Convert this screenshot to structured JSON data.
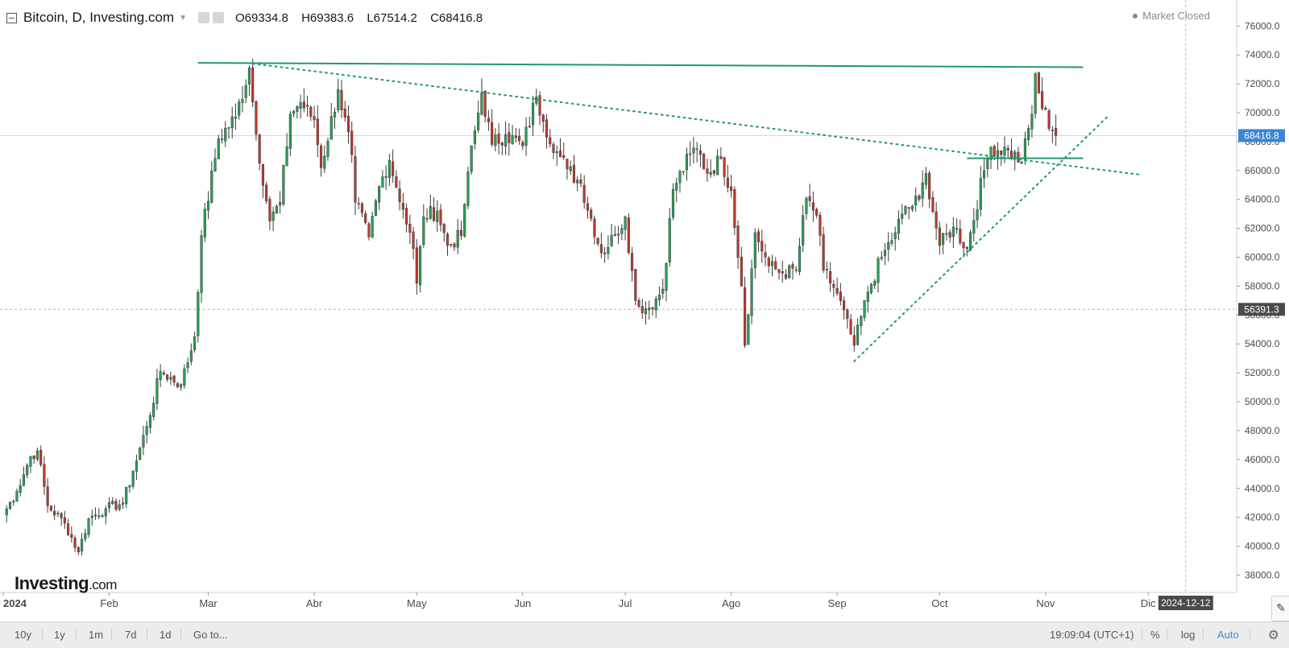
{
  "header": {
    "title": "Bitcoin, D, Investing.com",
    "ohlc": [
      {
        "key": "O",
        "value": "69334.8"
      },
      {
        "key": "H",
        "value": "69383.6"
      },
      {
        "key": "L",
        "value": "67514.2"
      },
      {
        "key": "C",
        "value": "68416.8"
      }
    ]
  },
  "market_status": "Market Closed",
  "logo": {
    "main": "Investing",
    "suffix": ".com"
  },
  "toolbar": {
    "ranges": [
      "10y",
      "1y",
      "1m",
      "7d",
      "1d"
    ],
    "goto_label": "Go to...",
    "clock": "19:09:04 (UTC+1)",
    "percent_label": "%",
    "log_label": "log",
    "auto_label": "Auto"
  },
  "colors": {
    "up": "#26a05a",
    "down": "#c0392b",
    "trend": "#1f9a6e",
    "grid": "#e3e3e3"
  },
  "chart_data": {
    "type": "candlestick",
    "title": "Bitcoin, D, Investing.com",
    "x_start": "2024-01-01",
    "x_end": "2024-12-21",
    "x_ticks": [
      {
        "date": "2024-01-01",
        "label": "2024"
      },
      {
        "date": "2024-02-01",
        "label": "Feb"
      },
      {
        "date": "2024-03-01",
        "label": "Mar"
      },
      {
        "date": "2024-04-01",
        "label": "Abr"
      },
      {
        "date": "2024-05-01",
        "label": "May"
      },
      {
        "date": "2024-06-01",
        "label": "Jun"
      },
      {
        "date": "2024-07-01",
        "label": "Jul"
      },
      {
        "date": "2024-08-01",
        "label": "Ago"
      },
      {
        "date": "2024-09-01",
        "label": "Sep"
      },
      {
        "date": "2024-10-01",
        "label": "Oct"
      },
      {
        "date": "2024-11-01",
        "label": "Nov"
      },
      {
        "date": "2024-12-01",
        "label": "Dic"
      }
    ],
    "y_ticks": [
      38000,
      40000,
      42000,
      44000,
      46000,
      48000,
      50000,
      52000,
      54000,
      56000,
      58000,
      60000,
      62000,
      64000,
      66000,
      68000,
      70000,
      72000,
      74000,
      76000
    ],
    "ylim": [
      36800,
      77800
    ],
    "last_price": {
      "value": 68416.8,
      "label": "68416.8"
    },
    "crosshair_price": {
      "value": 56391.3,
      "label": "56391.3"
    },
    "crosshair_date": {
      "date": "2024-12-12",
      "label": "2024-12-12"
    },
    "trendlines": [
      {
        "style": "solid",
        "from": {
          "date": "2024-02-27",
          "price": 73450
        },
        "to": {
          "date": "2024-11-12",
          "price": 73150
        }
      },
      {
        "style": "dotted",
        "from": {
          "date": "2024-03-14",
          "price": 73400
        },
        "to": {
          "date": "2024-11-29",
          "price": 65700
        }
      },
      {
        "style": "dotted",
        "from": {
          "date": "2024-09-06",
          "price": 52800
        },
        "to": {
          "date": "2024-11-19",
          "price": 69700
        }
      },
      {
        "style": "solid",
        "from": {
          "date": "2024-10-09",
          "price": 66850
        },
        "to": {
          "date": "2024-11-12",
          "price": 66850
        }
      }
    ],
    "anchors": [
      [
        "2024-01-01",
        42200
      ],
      [
        "2024-01-05",
        43800
      ],
      [
        "2024-01-09",
        46200
      ],
      [
        "2024-01-11",
        46600
      ],
      [
        "2024-01-14",
        42800
      ],
      [
        "2024-01-19",
        41600
      ],
      [
        "2024-01-23",
        39600
      ],
      [
        "2024-01-26",
        41900
      ],
      [
        "2024-01-31",
        42600
      ],
      [
        "2024-02-05",
        43000
      ],
      [
        "2024-02-08",
        45200
      ],
      [
        "2024-02-12",
        48300
      ],
      [
        "2024-02-16",
        52100
      ],
      [
        "2024-02-22",
        51200
      ],
      [
        "2024-02-26",
        54500
      ],
      [
        "2024-02-28",
        61500
      ],
      [
        "2024-03-04",
        68200
      ],
      [
        "2024-03-09",
        69700
      ],
      [
        "2024-03-13",
        73100
      ],
      [
        "2024-03-15",
        68500
      ],
      [
        "2024-03-19",
        62500
      ],
      [
        "2024-03-22",
        63800
      ],
      [
        "2024-03-25",
        69900
      ],
      [
        "2024-03-28",
        70700
      ],
      [
        "2024-04-01",
        69500
      ],
      [
        "2024-04-03",
        66200
      ],
      [
        "2024-04-08",
        71600
      ],
      [
        "2024-04-12",
        67100
      ],
      [
        "2024-04-13",
        63800
      ],
      [
        "2024-04-17",
        61400
      ],
      [
        "2024-04-20",
        64900
      ],
      [
        "2024-04-23",
        66700
      ],
      [
        "2024-04-27",
        63300
      ],
      [
        "2024-04-30",
        60600
      ],
      [
        "2024-05-01",
        58200
      ],
      [
        "2024-05-03",
        62800
      ],
      [
        "2024-05-07",
        63200
      ],
      [
        "2024-05-10",
        60800
      ],
      [
        "2024-05-14",
        61500
      ],
      [
        "2024-05-16",
        65900
      ],
      [
        "2024-05-20",
        71400
      ],
      [
        "2024-05-23",
        67800
      ],
      [
        "2024-05-27",
        68500
      ],
      [
        "2024-06-01",
        67700
      ],
      [
        "2024-06-05",
        71100
      ],
      [
        "2024-06-07",
        69400
      ],
      [
        "2024-06-11",
        67300
      ],
      [
        "2024-06-14",
        66100
      ],
      [
        "2024-06-18",
        65100
      ],
      [
        "2024-06-24",
        60300
      ],
      [
        "2024-06-28",
        61500
      ],
      [
        "2024-07-01",
        62800
      ],
      [
        "2024-07-04",
        57000
      ],
      [
        "2024-07-05",
        56600
      ],
      [
        "2024-07-08",
        56500
      ],
      [
        "2024-07-12",
        57800
      ],
      [
        "2024-07-15",
        64700
      ],
      [
        "2024-07-20",
        67100
      ],
      [
        "2024-07-22",
        67500
      ],
      [
        "2024-07-25",
        65800
      ],
      [
        "2024-07-29",
        66800
      ],
      [
        "2024-08-01",
        64600
      ],
      [
        "2024-08-04",
        58000
      ],
      [
        "2024-08-05",
        53900
      ],
      [
        "2024-08-08",
        61700
      ],
      [
        "2024-08-12",
        59400
      ],
      [
        "2024-08-16",
        58900
      ],
      [
        "2024-08-20",
        59100
      ],
      [
        "2024-08-23",
        64100
      ],
      [
        "2024-08-26",
        62900
      ],
      [
        "2024-08-28",
        59100
      ],
      [
        "2024-09-01",
        57500
      ],
      [
        "2024-09-06",
        53900
      ],
      [
        "2024-09-10",
        57600
      ],
      [
        "2024-09-14",
        60000
      ],
      [
        "2024-09-18",
        61700
      ],
      [
        "2024-09-20",
        63000
      ],
      [
        "2024-09-25",
        64000
      ],
      [
        "2024-09-27",
        65800
      ],
      [
        "2024-10-01",
        60800
      ],
      [
        "2024-10-05",
        62100
      ],
      [
        "2024-10-09",
        60600
      ],
      [
        "2024-10-14",
        66000
      ],
      [
        "2024-10-16",
        67600
      ],
      [
        "2024-10-21",
        67400
      ],
      [
        "2024-10-25",
        66600
      ],
      [
        "2024-10-28",
        69900
      ],
      [
        "2024-10-29",
        72700
      ],
      [
        "2024-10-31",
        70300
      ],
      [
        "2024-11-03",
        68800
      ],
      [
        "2024-11-04",
        68416
      ]
    ]
  }
}
